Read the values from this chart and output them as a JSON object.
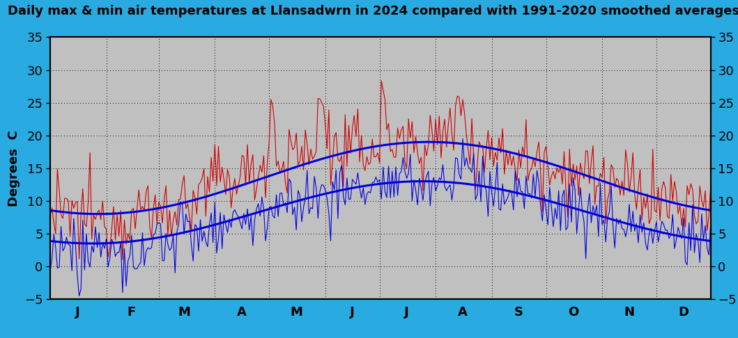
{
  "title": "Daily max & min air temperatures at Llansadwrn in 2024 compared with 1991-2020 smoothed averages",
  "ylabel_left": "Degrees  C",
  "background_color": "#29ABE2",
  "plot_bg_color": "#C0C0C0",
  "ylim": [
    -5,
    35
  ],
  "yticks": [
    -5,
    0,
    5,
    10,
    15,
    20,
    25,
    30,
    35
  ],
  "month_labels": [
    "J",
    "F",
    "M",
    "A",
    "M",
    "J",
    "J",
    "A",
    "S",
    "O",
    "N",
    "D"
  ],
  "line_color_max_smooth": "#0000DD",
  "line_color_min_smooth": "#0000DD",
  "line_color_max_daily": "#CC0000",
  "line_color_min_daily": "#0000DD",
  "smooth_linewidth": 2.2,
  "daily_linewidth": 0.8,
  "title_fontsize": 13,
  "axis_fontsize": 13,
  "tick_fontsize": 13
}
